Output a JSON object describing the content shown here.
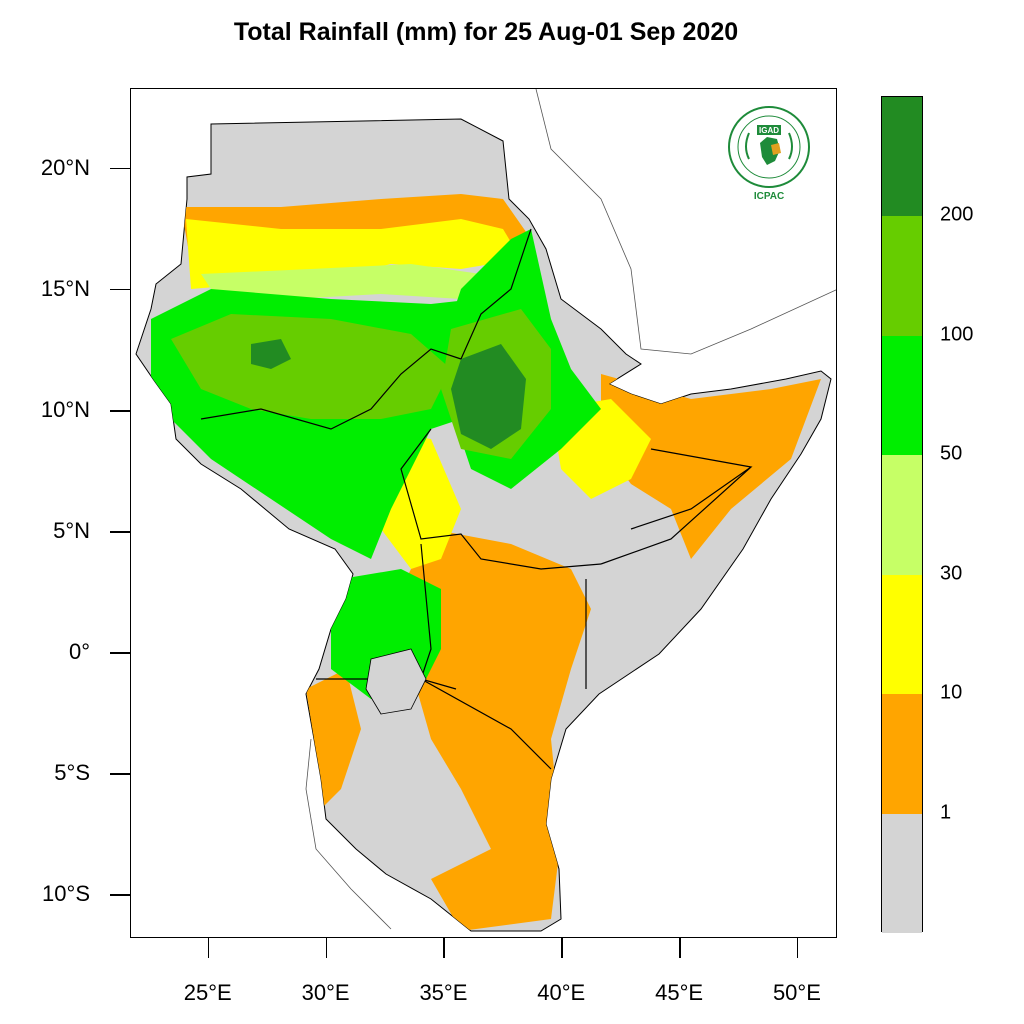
{
  "title": "Total Rainfall (mm) for 25 Aug-01 Sep 2020",
  "map": {
    "lon_range": [
      21.7,
      51.7
    ],
    "lat_range": [
      -11.8,
      23.3
    ],
    "background": "#ffffff",
    "border_color": "#000000",
    "lat_ticks": [
      {
        "value": 20,
        "label": "20°N"
      },
      {
        "value": 15,
        "label": "15°N"
      },
      {
        "value": 10,
        "label": "10°N"
      },
      {
        "value": 5,
        "label": "5°N"
      },
      {
        "value": 0,
        "label": "0°"
      },
      {
        "value": -5,
        "label": "5°S"
      },
      {
        "value": -10,
        "label": "10°S"
      }
    ],
    "lon_ticks": [
      {
        "value": 25,
        "label": "25°E"
      },
      {
        "value": 30,
        "label": "30°E"
      },
      {
        "value": 35,
        "label": "35°E"
      },
      {
        "value": 40,
        "label": "40°E"
      },
      {
        "value": 45,
        "label": "45°E"
      },
      {
        "value": 50,
        "label": "50°E"
      }
    ]
  },
  "legend": {
    "bins": [
      {
        "range": "< 1",
        "color": "#d4d4d4"
      },
      {
        "range": "1-10",
        "color": "#ffa500"
      },
      {
        "range": "10-30",
        "color": "#ffff00"
      },
      {
        "range": "30-50",
        "color": "#c6ff66"
      },
      {
        "range": "50-100",
        "color": "#00ee00"
      },
      {
        "range": "100-200",
        "color": "#66cd00"
      },
      {
        "range": ">200",
        "color": "#228b22"
      }
    ],
    "labels": [
      "1",
      "10",
      "30",
      "50",
      "100",
      "200"
    ]
  },
  "logo": {
    "name": "IGAD",
    "caption": "ICPAC",
    "ring_text": "INTERGOVERNMENTAL AUTHORITY ON DEVELOPMENT",
    "color": "#1e8b3a"
  }
}
